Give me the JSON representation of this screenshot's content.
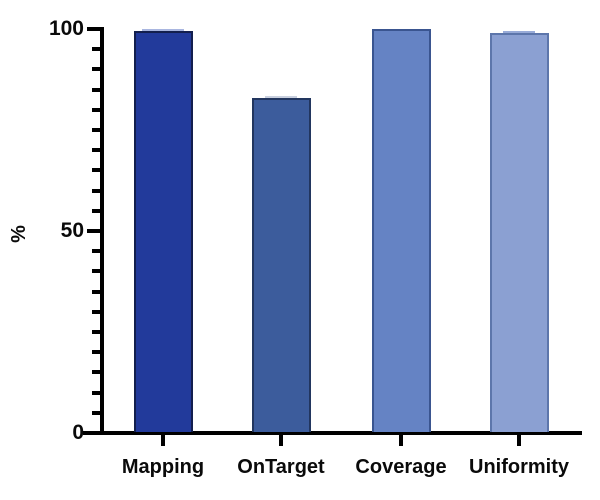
{
  "figure": {
    "background": "#ffffff",
    "axis_color": "#000000",
    "text_color": "#0a0a0a"
  },
  "chart_data": {
    "type": "bar",
    "title": "",
    "subtitle": "",
    "xlabel": "",
    "ylabel": "%",
    "categories": [
      "Mapping",
      "OnTarget",
      "Coverage",
      "Uniformity"
    ],
    "values": [
      99.5,
      83,
      100,
      99
    ],
    "ylim": [
      0,
      100
    ],
    "yticks": [
      0,
      50,
      100
    ],
    "ytick_labels": [
      "0",
      "50",
      "100"
    ],
    "minor_tick_step": 5,
    "grid": false,
    "legend": "none",
    "bar_colors": [
      "#223a9b",
      "#3c5c9c",
      "#6583c4",
      "#8ba0d2"
    ],
    "bar_border_colors": [
      "#131f4e",
      "#22365f",
      "#3a5590",
      "#5d76ab"
    ],
    "error_caps": [
      {
        "color": "#a9b6e0",
        "width_frac": 0.72,
        "offset": 2
      },
      {
        "color": "#c9d0df",
        "width_frac": 0.55,
        "offset": 2
      },
      null,
      {
        "color": "#98abd8",
        "width_frac": 0.55,
        "offset": 2
      }
    ]
  }
}
